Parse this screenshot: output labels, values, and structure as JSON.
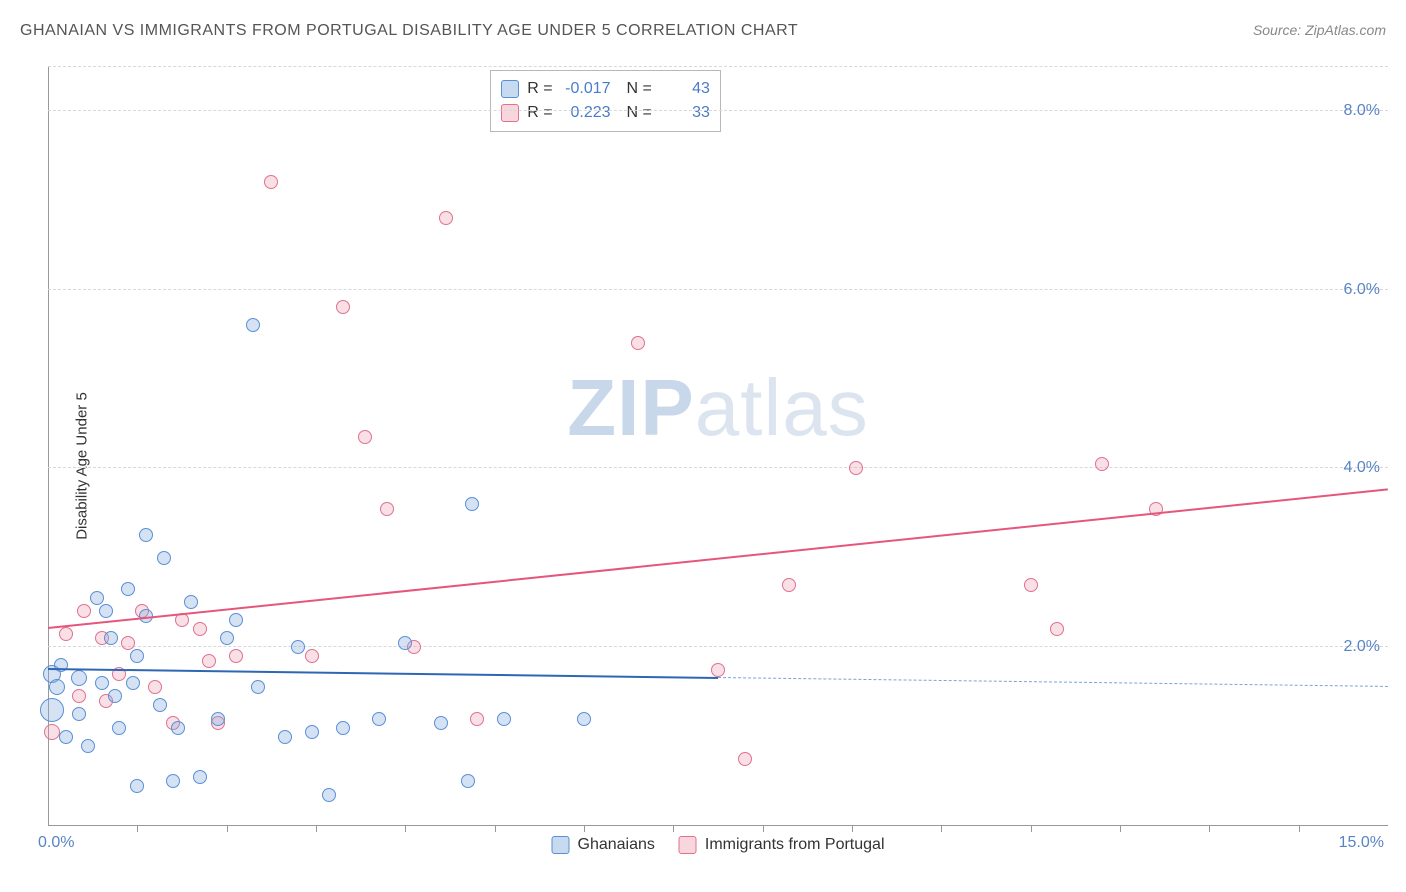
{
  "header": {
    "title": "GHANAIAN VS IMMIGRANTS FROM PORTUGAL DISABILITY AGE UNDER 5 CORRELATION CHART",
    "source": "Source: ZipAtlas.com"
  },
  "chart": {
    "type": "scatter",
    "ylabel": "Disability Age Under 5",
    "xlim": [
      0.0,
      15.0
    ],
    "ylim": [
      0.0,
      8.5
    ],
    "yticks": [
      2.0,
      4.0,
      6.0,
      8.0
    ],
    "ytick_labels": [
      "2.0%",
      "4.0%",
      "6.0%",
      "8.0%"
    ],
    "xticks": [
      1,
      2,
      3,
      4,
      5,
      6,
      7,
      8,
      9,
      10,
      11,
      12,
      13,
      14
    ],
    "x_min_label": "0.0%",
    "x_max_label": "15.0%",
    "background_color": "#ffffff",
    "grid_color": "#d8d8d8",
    "axis_color": "#999999",
    "marker_base_size": 16,
    "watermark": {
      "part1": "ZIP",
      "part2": "atlas"
    },
    "stats_box": {
      "position": "top-center",
      "rows": [
        {
          "series": "blue",
          "R_label": "R =",
          "R_value": "-0.017",
          "N_label": "N =",
          "N_value": "43"
        },
        {
          "series": "pink",
          "R_label": "R =",
          "R_value": "0.223",
          "N_label": "N =",
          "N_value": "33"
        }
      ]
    },
    "bottom_legend": [
      {
        "series": "blue",
        "label": "Ghanaians"
      },
      {
        "series": "pink",
        "label": "Immigrants from Portugal"
      }
    ],
    "series": {
      "blue": {
        "label": "Ghanaians",
        "marker_color_fill": "rgba(133,172,222,0.35)",
        "marker_color_stroke": "#5a8fd6",
        "trend_color": "#2f66b3",
        "trend_dash_color": "#7aa4d8",
        "trend": {
          "x0": 0.0,
          "y0": 1.75,
          "x1_solid": 7.5,
          "y1_solid": 1.65,
          "x1_dash": 15.0,
          "y1_dash": 1.55
        },
        "points": [
          {
            "x": 0.05,
            "y": 1.3,
            "s": 24
          },
          {
            "x": 0.05,
            "y": 1.7,
            "s": 18
          },
          {
            "x": 0.1,
            "y": 1.55,
            "s": 16
          },
          {
            "x": 0.15,
            "y": 1.8,
            "s": 14
          },
          {
            "x": 0.2,
            "y": 1.0,
            "s": 14
          },
          {
            "x": 0.35,
            "y": 1.65,
            "s": 16
          },
          {
            "x": 0.35,
            "y": 1.25,
            "s": 14
          },
          {
            "x": 0.55,
            "y": 2.55,
            "s": 14
          },
          {
            "x": 0.6,
            "y": 1.6,
            "s": 14
          },
          {
            "x": 0.7,
            "y": 2.1,
            "s": 14
          },
          {
            "x": 0.75,
            "y": 1.45,
            "s": 14
          },
          {
            "x": 0.8,
            "y": 1.1,
            "s": 14
          },
          {
            "x": 0.9,
            "y": 2.65,
            "s": 14
          },
          {
            "x": 0.95,
            "y": 1.6,
            "s": 14
          },
          {
            "x": 1.0,
            "y": 0.45,
            "s": 14
          },
          {
            "x": 1.1,
            "y": 3.25,
            "s": 14
          },
          {
            "x": 1.1,
            "y": 2.35,
            "s": 14
          },
          {
            "x": 1.3,
            "y": 3.0,
            "s": 14
          },
          {
            "x": 1.4,
            "y": 0.5,
            "s": 14
          },
          {
            "x": 1.45,
            "y": 1.1,
            "s": 14
          },
          {
            "x": 1.6,
            "y": 2.5,
            "s": 14
          },
          {
            "x": 1.7,
            "y": 0.55,
            "s": 14
          },
          {
            "x": 1.9,
            "y": 1.2,
            "s": 14
          },
          {
            "x": 2.0,
            "y": 2.1,
            "s": 14
          },
          {
            "x": 2.1,
            "y": 2.3,
            "s": 14
          },
          {
            "x": 2.3,
            "y": 5.6,
            "s": 14
          },
          {
            "x": 2.35,
            "y": 1.55,
            "s": 14
          },
          {
            "x": 2.65,
            "y": 1.0,
            "s": 14
          },
          {
            "x": 2.8,
            "y": 2.0,
            "s": 14
          },
          {
            "x": 2.95,
            "y": 1.05,
            "s": 14
          },
          {
            "x": 3.15,
            "y": 0.35,
            "s": 14
          },
          {
            "x": 3.3,
            "y": 1.1,
            "s": 14
          },
          {
            "x": 3.7,
            "y": 1.2,
            "s": 14
          },
          {
            "x": 4.0,
            "y": 2.05,
            "s": 14
          },
          {
            "x": 4.4,
            "y": 1.15,
            "s": 14
          },
          {
            "x": 4.7,
            "y": 0.5,
            "s": 14
          },
          {
            "x": 4.75,
            "y": 3.6,
            "s": 14
          },
          {
            "x": 5.1,
            "y": 1.2,
            "s": 14
          },
          {
            "x": 6.0,
            "y": 1.2,
            "s": 14
          },
          {
            "x": 0.45,
            "y": 0.9,
            "s": 14
          },
          {
            "x": 1.0,
            "y": 1.9,
            "s": 14
          },
          {
            "x": 0.65,
            "y": 2.4,
            "s": 14
          },
          {
            "x": 1.25,
            "y": 1.35,
            "s": 14
          }
        ]
      },
      "pink": {
        "label": "Immigrants from Portugal",
        "marker_color_fill": "rgba(236,152,173,0.30)",
        "marker_color_stroke": "#e0718f",
        "trend_color": "#e5567d",
        "trend": {
          "x0": 0.0,
          "y0": 2.2,
          "x1": 15.0,
          "y1": 3.75
        },
        "points": [
          {
            "x": 0.05,
            "y": 1.05,
            "s": 16
          },
          {
            "x": 0.2,
            "y": 2.15,
            "s": 14
          },
          {
            "x": 0.35,
            "y": 1.45,
            "s": 14
          },
          {
            "x": 0.4,
            "y": 2.4,
            "s": 14
          },
          {
            "x": 0.6,
            "y": 2.1,
            "s": 14
          },
          {
            "x": 0.65,
            "y": 1.4,
            "s": 14
          },
          {
            "x": 0.9,
            "y": 2.05,
            "s": 14
          },
          {
            "x": 1.05,
            "y": 2.4,
            "s": 14
          },
          {
            "x": 1.2,
            "y": 1.55,
            "s": 14
          },
          {
            "x": 1.4,
            "y": 1.15,
            "s": 14
          },
          {
            "x": 1.5,
            "y": 2.3,
            "s": 14
          },
          {
            "x": 1.7,
            "y": 2.2,
            "s": 14
          },
          {
            "x": 1.8,
            "y": 1.85,
            "s": 14
          },
          {
            "x": 1.9,
            "y": 1.15,
            "s": 14
          },
          {
            "x": 2.1,
            "y": 1.9,
            "s": 14
          },
          {
            "x": 2.5,
            "y": 7.2,
            "s": 14
          },
          {
            "x": 2.95,
            "y": 1.9,
            "s": 14
          },
          {
            "x": 3.3,
            "y": 5.8,
            "s": 14
          },
          {
            "x": 3.55,
            "y": 4.35,
            "s": 14
          },
          {
            "x": 3.8,
            "y": 3.55,
            "s": 14
          },
          {
            "x": 4.1,
            "y": 2.0,
            "s": 14
          },
          {
            "x": 4.45,
            "y": 6.8,
            "s": 14
          },
          {
            "x": 4.8,
            "y": 1.2,
            "s": 14
          },
          {
            "x": 6.6,
            "y": 5.4,
            "s": 14
          },
          {
            "x": 7.5,
            "y": 1.75,
            "s": 14
          },
          {
            "x": 7.8,
            "y": 0.75,
            "s": 14
          },
          {
            "x": 8.3,
            "y": 2.7,
            "s": 14
          },
          {
            "x": 9.05,
            "y": 4.0,
            "s": 14
          },
          {
            "x": 11.0,
            "y": 2.7,
            "s": 14
          },
          {
            "x": 11.3,
            "y": 2.2,
            "s": 14
          },
          {
            "x": 11.8,
            "y": 4.05,
            "s": 14
          },
          {
            "x": 12.4,
            "y": 3.55,
            "s": 14
          },
          {
            "x": 0.8,
            "y": 1.7,
            "s": 14
          }
        ]
      }
    }
  }
}
